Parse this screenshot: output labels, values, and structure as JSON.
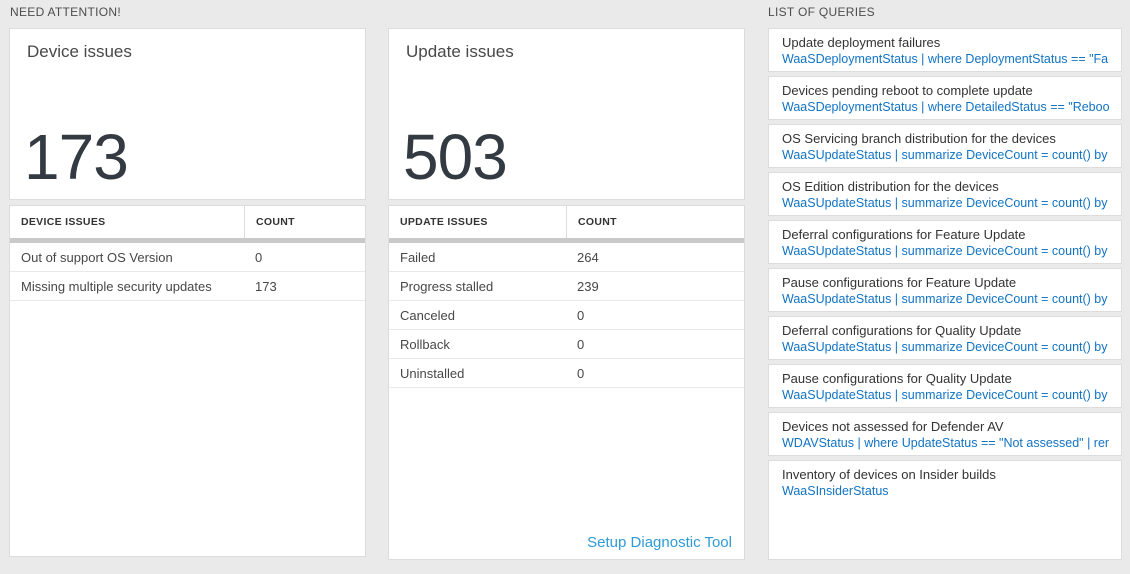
{
  "colors": {
    "background": "#eaeaea",
    "query_link_blue": "#1273c3",
    "action_link_blue": "#2e9bd6",
    "big_number": "#333a41"
  },
  "need_attention": {
    "header": "NEED ATTENTION!",
    "cards": [
      {
        "title": "Device issues",
        "count": "173",
        "table": {
          "columns": [
            "DEVICE ISSUES",
            "COUNT"
          ],
          "rows": [
            [
              "Out of support OS Version",
              "0"
            ],
            [
              "Missing multiple security updates",
              "173"
            ]
          ]
        }
      },
      {
        "title": "Update issues",
        "count": "503",
        "table": {
          "columns": [
            "UPDATE ISSUES",
            "COUNT"
          ],
          "rows": [
            [
              "Failed",
              "264"
            ],
            [
              "Progress stalled",
              "239"
            ],
            [
              "Canceled",
              "0"
            ],
            [
              "Rollback",
              "0"
            ],
            [
              "Uninstalled",
              "0"
            ]
          ]
        },
        "footer_link": "Setup Diagnostic Tool"
      }
    ]
  },
  "queries": {
    "header": "LIST OF QUERIES",
    "items": [
      {
        "title": "Update deployment failures",
        "query": "WaaSDeploymentStatus | where DeploymentStatus == \"Failed\" |..."
      },
      {
        "title": "Devices pending reboot to complete update",
        "query": "WaaSDeploymentStatus | where DetailedStatus == \"Reboot pend..."
      },
      {
        "title": "OS Servicing branch distribution for the devices",
        "query": "WaaSUpdateStatus | summarize DeviceCount = count() by OSSer..."
      },
      {
        "title": "OS Edition distribution for the devices",
        "query": "WaaSUpdateStatus | summarize DeviceCount = count() by OSEdit..."
      },
      {
        "title": "Deferral configurations for Feature Update",
        "query": "WaaSUpdateStatus | summarize DeviceCount = count() by Featur..."
      },
      {
        "title": "Pause configurations for Feature Update",
        "query": "WaaSUpdateStatus | summarize DeviceCount = count() by Featur..."
      },
      {
        "title": "Deferral configurations for Quality Update",
        "query": "WaaSUpdateStatus | summarize DeviceCount = count() by Qualit..."
      },
      {
        "title": "Pause configurations for Quality Update",
        "query": "WaaSUpdateStatus | summarize DeviceCount = count() by Qualit..."
      },
      {
        "title": "Devices not assessed for Defender AV",
        "query": "WDAVStatus | where UpdateStatus == \"Not assessed\" | render ta..."
      },
      {
        "title": "Inventory of devices on Insider builds",
        "query": "WaaSInsiderStatus"
      }
    ]
  }
}
